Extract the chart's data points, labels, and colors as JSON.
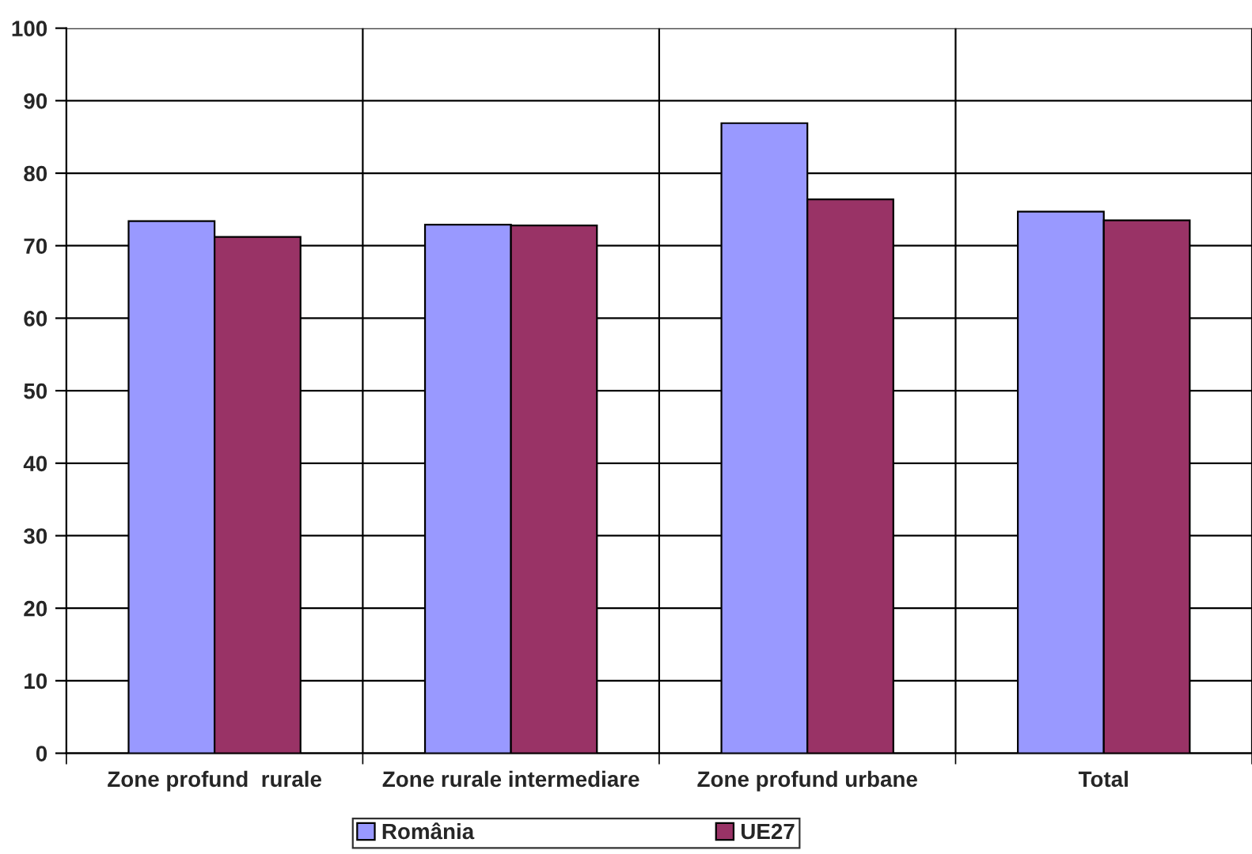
{
  "chart_data": {
    "type": "bar",
    "categories": [
      "Zone profund  rurale",
      "Zone rurale intermediare",
      "Zone profund urbane",
      "Total"
    ],
    "series": [
      {
        "name": "România",
        "color": "#9999ff",
        "values": [
          73.4,
          72.9,
          86.9,
          74.7
        ]
      },
      {
        "name": "UE27",
        "color": "#993366",
        "values": [
          71.2,
          72.8,
          76.4,
          73.5
        ]
      }
    ],
    "ylim": [
      0,
      100
    ],
    "yticks": [
      0,
      10,
      20,
      30,
      40,
      50,
      60,
      70,
      80,
      90,
      100
    ],
    "grid": true,
    "legend": "bottom"
  }
}
